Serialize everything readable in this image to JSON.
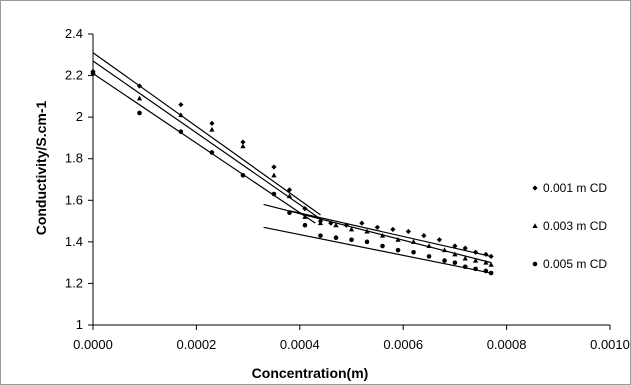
{
  "chart_data": {
    "type": "scatter",
    "title": "",
    "xlabel": "Concentration(m)",
    "ylabel": "Conductivity/S.cm-1",
    "xlim": [
      0,
      0.001
    ],
    "ylim": [
      1,
      2.4
    ],
    "x_ticks": [
      "0.0000",
      "0.0002",
      "0.0004",
      "0.0006",
      "0.0008",
      "0.0010"
    ],
    "y_ticks": [
      "1",
      "1.2",
      "1.4",
      "1.6",
      "1.8",
      "2",
      "2.2",
      "2.4"
    ],
    "grid": false,
    "legend_position": "right",
    "series": [
      {
        "name": "0.001 m CD",
        "marker": "diamond",
        "points": [
          [
            0,
            2.22
          ],
          [
            9e-05,
            2.15
          ],
          [
            0.00017,
            2.06
          ],
          [
            0.00023,
            1.97
          ],
          [
            0.00029,
            1.88
          ],
          [
            0.00035,
            1.76
          ],
          [
            0.00038,
            1.65
          ],
          [
            0.00041,
            1.56
          ],
          [
            0.00044,
            1.5
          ],
          [
            0.00046,
            1.49
          ],
          [
            0.00049,
            1.48
          ],
          [
            0.00052,
            1.49
          ],
          [
            0.00055,
            1.47
          ],
          [
            0.00058,
            1.46
          ],
          [
            0.00061,
            1.45
          ],
          [
            0.00064,
            1.43
          ],
          [
            0.00067,
            1.41
          ],
          [
            0.0007,
            1.38
          ],
          [
            0.00072,
            1.37
          ],
          [
            0.00074,
            1.35
          ],
          [
            0.00076,
            1.34
          ],
          [
            0.00077,
            1.33
          ]
        ],
        "fits": [
          {
            "x": [
              0,
              0.00044
            ],
            "y": [
              2.31,
              1.53
            ]
          },
          {
            "x": [
              0.00038,
              0.00077
            ],
            "y": [
              1.55,
              1.33
            ]
          }
        ]
      },
      {
        "name": "0.003 m CD",
        "marker": "triangle",
        "points": [
          [
            0,
            2.22
          ],
          [
            9e-05,
            2.09
          ],
          [
            0.00017,
            2.01
          ],
          [
            0.00023,
            1.94
          ],
          [
            0.00029,
            1.86
          ],
          [
            0.00035,
            1.72
          ],
          [
            0.00038,
            1.62
          ],
          [
            0.00041,
            1.52
          ],
          [
            0.00044,
            1.49
          ],
          [
            0.00047,
            1.48
          ],
          [
            0.0005,
            1.46
          ],
          [
            0.00053,
            1.45
          ],
          [
            0.00056,
            1.43
          ],
          [
            0.00059,
            1.41
          ],
          [
            0.00062,
            1.4
          ],
          [
            0.00065,
            1.38
          ],
          [
            0.00068,
            1.36
          ],
          [
            0.0007,
            1.34
          ],
          [
            0.00072,
            1.32
          ],
          [
            0.00074,
            1.31
          ],
          [
            0.00076,
            1.3
          ],
          [
            0.00077,
            1.29
          ]
        ],
        "fits": [
          {
            "x": [
              0,
              0.00044
            ],
            "y": [
              2.27,
              1.51
            ]
          },
          {
            "x": [
              0.00033,
              0.00077
            ],
            "y": [
              1.58,
              1.3
            ]
          }
        ]
      },
      {
        "name": "0.005 m CD",
        "marker": "circle",
        "points": [
          [
            0,
            2.21
          ],
          [
            9e-05,
            2.02
          ],
          [
            0.00017,
            1.93
          ],
          [
            0.00023,
            1.83
          ],
          [
            0.00029,
            1.72
          ],
          [
            0.00035,
            1.63
          ],
          [
            0.00038,
            1.54
          ],
          [
            0.00041,
            1.48
          ],
          [
            0.00044,
            1.43
          ],
          [
            0.00047,
            1.42
          ],
          [
            0.0005,
            1.41
          ],
          [
            0.00053,
            1.4
          ],
          [
            0.00056,
            1.38
          ],
          [
            0.00059,
            1.36
          ],
          [
            0.00062,
            1.35
          ],
          [
            0.00065,
            1.33
          ],
          [
            0.00068,
            1.31
          ],
          [
            0.0007,
            1.3
          ],
          [
            0.00072,
            1.28
          ],
          [
            0.00074,
            1.27
          ],
          [
            0.00076,
            1.26
          ],
          [
            0.00077,
            1.25
          ]
        ],
        "fits": [
          {
            "x": [
              0,
              0.00043
            ],
            "y": [
              2.21,
              1.49
            ]
          },
          {
            "x": [
              0.00033,
              0.00077
            ],
            "y": [
              1.47,
              1.25
            ]
          }
        ]
      }
    ]
  }
}
